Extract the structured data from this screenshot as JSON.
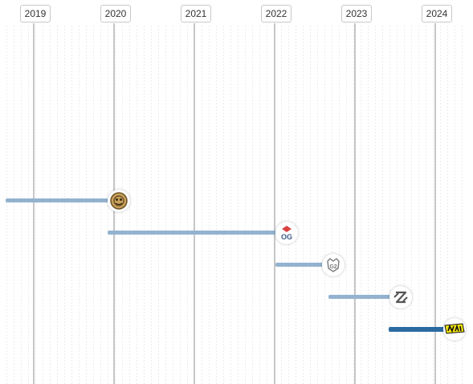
{
  "timeline": {
    "years": [
      "2019",
      "2020",
      "2021",
      "2022",
      "2023",
      "2024"
    ],
    "tenures": [
      {
        "team_icon": "ence-icon",
        "current": false
      },
      {
        "team_icon": "og-icon",
        "current": false
      },
      {
        "team_icon": "g2-icon",
        "current": false
      },
      {
        "team_icon": "nip-icon",
        "current": false
      },
      {
        "team_icon": "navi-icon",
        "current": true
      }
    ]
  },
  "colors": {
    "past_bar": "#93b2cf",
    "current_bar": "#2a6aa0",
    "year_line": "#c6c6c6"
  }
}
